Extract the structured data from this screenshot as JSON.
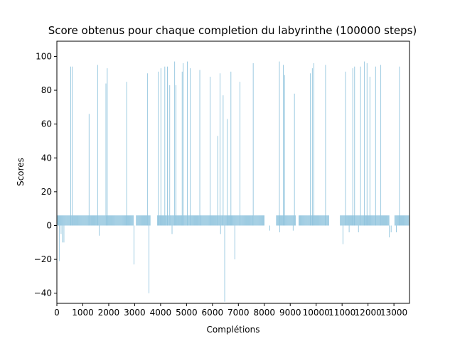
{
  "chart_data": {
    "type": "bar",
    "title": "Score obtenus pour chaque completion du labyrinthe (100000 steps)",
    "xlabel": "Complétions",
    "ylabel": "Scores",
    "xlim": [
      0,
      13600
    ],
    "ylim": [
      -46,
      109
    ],
    "x_ticks": [
      0,
      1000,
      2000,
      3000,
      4000,
      5000,
      6000,
      7000,
      8000,
      9000,
      10000,
      11000,
      12000,
      13000
    ],
    "y_ticks": [
      -40,
      -20,
      0,
      20,
      40,
      60,
      80,
      100
    ],
    "bar_color": "#92c5de",
    "grid": false,
    "legend": "none",
    "series": [
      {
        "baseline_value": 6,
        "baseline_gaps": [
          [
            2950,
            3050
          ],
          [
            3600,
            3850
          ],
          [
            8000,
            8450
          ],
          [
            9200,
            9300
          ],
          [
            10500,
            10900
          ],
          [
            12800,
            13000
          ]
        ],
        "spikes": [
          {
            "x": 80,
            "y": -21
          },
          {
            "x": 150,
            "y": -5
          },
          {
            "x": 200,
            "y": -10
          },
          {
            "x": 260,
            "y": -10
          },
          {
            "x": 520,
            "y": 94
          },
          {
            "x": 580,
            "y": 94
          },
          {
            "x": 1230,
            "y": 66
          },
          {
            "x": 1560,
            "y": 95
          },
          {
            "x": 1620,
            "y": -6
          },
          {
            "x": 1880,
            "y": 84
          },
          {
            "x": 1930,
            "y": 93
          },
          {
            "x": 2680,
            "y": 85
          },
          {
            "x": 2960,
            "y": -23
          },
          {
            "x": 3480,
            "y": 90
          },
          {
            "x": 3540,
            "y": -40
          },
          {
            "x": 3900,
            "y": 91
          },
          {
            "x": 4000,
            "y": 93
          },
          {
            "x": 4150,
            "y": 94
          },
          {
            "x": 4250,
            "y": 94
          },
          {
            "x": 4340,
            "y": 83
          },
          {
            "x": 4430,
            "y": -5
          },
          {
            "x": 4530,
            "y": 97
          },
          {
            "x": 4580,
            "y": 83
          },
          {
            "x": 4820,
            "y": 91
          },
          {
            "x": 4860,
            "y": 96
          },
          {
            "x": 5020,
            "y": 97
          },
          {
            "x": 5130,
            "y": 93
          },
          {
            "x": 5500,
            "y": 92
          },
          {
            "x": 5900,
            "y": 88
          },
          {
            "x": 6190,
            "y": 53
          },
          {
            "x": 6280,
            "y": 90
          },
          {
            "x": 6300,
            "y": -5
          },
          {
            "x": 6400,
            "y": 77
          },
          {
            "x": 6460,
            "y": -45
          },
          {
            "x": 6560,
            "y": 63
          },
          {
            "x": 6700,
            "y": 91
          },
          {
            "x": 6850,
            "y": -20
          },
          {
            "x": 7050,
            "y": 85
          },
          {
            "x": 7560,
            "y": 96
          },
          {
            "x": 8200,
            "y": -3
          },
          {
            "x": 8570,
            "y": 97
          },
          {
            "x": 8580,
            "y": -4
          },
          {
            "x": 8720,
            "y": 95
          },
          {
            "x": 8770,
            "y": 89
          },
          {
            "x": 9100,
            "y": -3
          },
          {
            "x": 9150,
            "y": 78
          },
          {
            "x": 9760,
            "y": 90
          },
          {
            "x": 9840,
            "y": 93
          },
          {
            "x": 9900,
            "y": 96
          },
          {
            "x": 10350,
            "y": 95
          },
          {
            "x": 11020,
            "y": -11
          },
          {
            "x": 11120,
            "y": 91
          },
          {
            "x": 11260,
            "y": -4
          },
          {
            "x": 11400,
            "y": 93
          },
          {
            "x": 11470,
            "y": 94
          },
          {
            "x": 11620,
            "y": -4
          },
          {
            "x": 11700,
            "y": 94
          },
          {
            "x": 11850,
            "y": 97
          },
          {
            "x": 11950,
            "y": 96
          },
          {
            "x": 12060,
            "y": 88
          },
          {
            "x": 12280,
            "y": 94
          },
          {
            "x": 12480,
            "y": 95
          },
          {
            "x": 12810,
            "y": -7
          },
          {
            "x": 12880,
            "y": -4
          },
          {
            "x": 13080,
            "y": -4
          },
          {
            "x": 13200,
            "y": 94
          }
        ]
      }
    ]
  }
}
